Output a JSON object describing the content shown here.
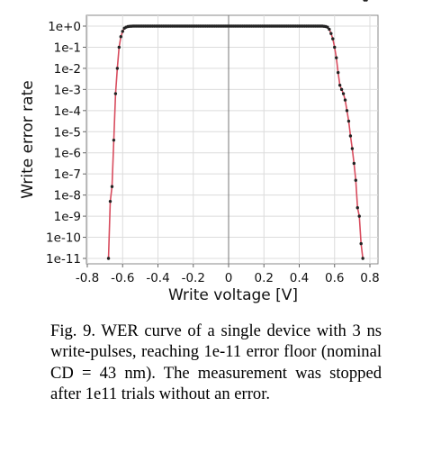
{
  "chart_data": {
    "type": "line",
    "xlabel": "Write voltage [V]",
    "ylabel": "Write error rate",
    "xlim": [
      -0.8,
      0.8
    ],
    "ylim_log10": [
      -11,
      0
    ],
    "log_y": true,
    "x_ticks": [
      "-0.8",
      "-0.6",
      "-0.4",
      "-0.2",
      "0",
      "0.2",
      "0.4",
      "0.6",
      "0.8"
    ],
    "x_tick_values": [
      -0.8,
      -0.6,
      -0.4,
      -0.2,
      0,
      0.2,
      0.4,
      0.6,
      0.8
    ],
    "y_ticks": [
      "1e+0",
      "1e-1",
      "1e-2",
      "1e-3",
      "1e-4",
      "1e-5",
      "1e-6",
      "1e-7",
      "1e-8",
      "1e-9",
      "1e-10",
      "1e-11"
    ],
    "y_tick_exponents": [
      0,
      -1,
      -2,
      -3,
      -4,
      -5,
      -6,
      -7,
      -8,
      -9,
      -10,
      -11
    ],
    "grid": true,
    "line_color": "#d84c5e",
    "marker_color": "#222222",
    "series": [
      {
        "x": [
          -0.68,
          -0.67,
          -0.66,
          -0.65,
          -0.64,
          -0.63,
          -0.62,
          -0.61,
          -0.6,
          -0.59,
          -0.58,
          -0.57,
          -0.56,
          -0.55,
          -0.54,
          -0.53,
          -0.52,
          -0.51,
          -0.5,
          -0.49,
          -0.48,
          -0.47,
          -0.46,
          -0.45,
          -0.44,
          -0.43,
          -0.42,
          -0.41,
          -0.4,
          -0.39,
          -0.38,
          -0.37,
          -0.36,
          -0.35,
          -0.34,
          -0.33,
          -0.32,
          -0.31,
          -0.3,
          -0.29,
          -0.28,
          -0.27,
          -0.26,
          -0.25,
          -0.24,
          -0.23,
          -0.22,
          -0.21,
          -0.2,
          -0.19,
          -0.18,
          -0.17,
          -0.16,
          -0.15,
          -0.14,
          -0.13,
          -0.12,
          -0.11,
          -0.1,
          -0.09,
          -0.08,
          -0.07,
          -0.06,
          -0.05,
          -0.04,
          -0.03,
          -0.02,
          -0.01,
          0.0,
          0.01,
          0.02,
          0.03,
          0.04,
          0.05,
          0.06,
          0.07,
          0.08,
          0.09,
          0.1,
          0.11,
          0.12,
          0.13,
          0.14,
          0.15,
          0.16,
          0.17,
          0.18,
          0.19,
          0.2,
          0.21,
          0.22,
          0.23,
          0.24,
          0.25,
          0.26,
          0.27,
          0.28,
          0.29,
          0.3,
          0.31,
          0.32,
          0.33,
          0.34,
          0.35,
          0.36,
          0.37,
          0.38,
          0.39,
          0.4,
          0.41,
          0.42,
          0.43,
          0.44,
          0.45,
          0.46,
          0.47,
          0.48,
          0.49,
          0.5,
          0.51,
          0.52,
          0.53,
          0.54,
          0.55,
          0.56,
          0.57,
          0.58,
          0.59,
          0.6,
          0.61,
          0.62,
          0.63,
          0.64,
          0.65,
          0.66,
          0.67,
          0.68,
          0.69,
          0.7,
          0.71,
          0.72,
          0.73,
          0.74,
          0.75,
          0.76,
          0.77,
          0.78
        ],
        "log10_y": [
          -11,
          -8.3,
          -7.6,
          -5.4,
          -3.2,
          -2.0,
          -1.0,
          -0.5,
          -0.25,
          -0.1,
          -0.05,
          -0.02,
          -0.01,
          -0.005,
          0,
          0,
          0,
          0,
          0,
          0,
          0,
          0,
          0,
          0,
          0,
          0,
          0,
          0,
          0,
          0,
          0,
          0,
          0,
          0,
          0,
          0,
          0,
          0,
          0,
          0,
          0,
          0,
          0,
          0,
          0,
          0,
          0,
          0,
          0,
          0,
          0,
          0,
          0,
          0,
          0,
          0,
          0,
          0,
          0,
          0,
          0,
          0,
          0,
          0,
          0,
          0,
          0,
          0,
          0,
          0,
          0,
          0,
          0,
          0,
          0,
          0,
          0,
          0,
          0,
          0,
          0,
          0,
          0,
          0,
          0,
          0,
          0,
          0,
          0,
          0,
          0,
          0,
          0,
          0,
          0,
          0,
          0,
          0,
          0,
          0,
          0,
          0,
          0,
          0,
          0,
          0,
          0,
          0,
          0,
          0,
          0,
          0,
          0,
          0,
          0,
          0,
          0,
          0,
          0,
          0,
          0,
          0,
          -0.01,
          -0.02,
          -0.05,
          -0.15,
          -0.35,
          -0.6,
          -1.0,
          -1.5,
          -2.2,
          -2.8,
          -3.0,
          -3.2,
          -3.5,
          -4.0,
          -4.5,
          -5.2,
          -5.8,
          -6.5,
          -7.3,
          -8.6,
          -9.0,
          -10.3,
          -11
        ]
      }
    ]
  },
  "caption": "Fig. 9. WER curve of a single device with 3 ns write-pulses, reaching 1e-11 error floor (nominal CD = 43 nm). The measurement was stopped after 1e11 trials without an error."
}
